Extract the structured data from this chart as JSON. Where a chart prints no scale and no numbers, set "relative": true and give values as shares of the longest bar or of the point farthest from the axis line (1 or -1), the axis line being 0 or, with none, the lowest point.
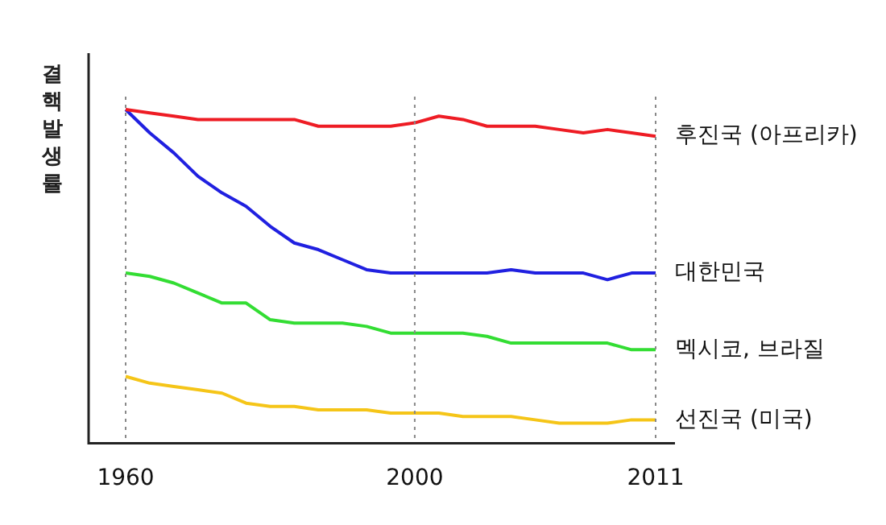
{
  "chart_data": {
    "type": "line",
    "relative": true,
    "ylabel": "결핵발생률",
    "legend": false,
    "grid": false,
    "marker": "none",
    "line_style": "solid",
    "categories": [
      "1960",
      null,
      null,
      null,
      null,
      null,
      null,
      null,
      null,
      null,
      null,
      null,
      "2000",
      null,
      null,
      null,
      null,
      null,
      null,
      null,
      null,
      null,
      "2011"
    ],
    "ref_lines": [
      {
        "axis": "x",
        "value": "1960",
        "color": "#888888",
        "line_style": "dotted"
      },
      {
        "axis": "x",
        "value": "2000",
        "color": "#888888",
        "line_style": "dotted"
      },
      {
        "axis": "x",
        "value": "2011",
        "color": "#888888",
        "line_style": "dotted"
      }
    ],
    "series": [
      {
        "name": "후진국 (아프리카)",
        "color": "#ee1c24",
        "values": [
          1.0,
          0.99,
          0.98,
          0.97,
          0.97,
          0.97,
          0.97,
          0.97,
          0.95,
          0.95,
          0.95,
          0.95,
          0.96,
          0.98,
          0.97,
          0.95,
          0.95,
          0.95,
          0.94,
          0.93,
          0.94,
          0.93,
          0.92
        ]
      },
      {
        "name": "대한민국",
        "color": "#2020e0",
        "values": [
          1.0,
          0.93,
          0.87,
          0.8,
          0.75,
          0.71,
          0.65,
          0.6,
          0.58,
          0.55,
          0.52,
          0.51,
          0.51,
          0.51,
          0.51,
          0.51,
          0.52,
          0.51,
          0.51,
          0.51,
          0.49,
          0.51,
          0.51
        ]
      },
      {
        "name": "멕시코, 브라질",
        "color": "#33dd33",
        "values": [
          0.51,
          0.5,
          0.48,
          0.45,
          0.42,
          0.42,
          0.37,
          0.36,
          0.36,
          0.36,
          0.35,
          0.33,
          0.33,
          0.33,
          0.33,
          0.32,
          0.3,
          0.3,
          0.3,
          0.3,
          0.3,
          0.28,
          0.28
        ]
      },
      {
        "name": "선진국 (미국)",
        "color": "#f5c518",
        "values": [
          0.2,
          0.18,
          0.17,
          0.16,
          0.15,
          0.12,
          0.11,
          0.11,
          0.1,
          0.1,
          0.1,
          0.09,
          0.09,
          0.09,
          0.08,
          0.08,
          0.08,
          0.07,
          0.06,
          0.06,
          0.06,
          0.07,
          0.07
        ]
      }
    ]
  }
}
